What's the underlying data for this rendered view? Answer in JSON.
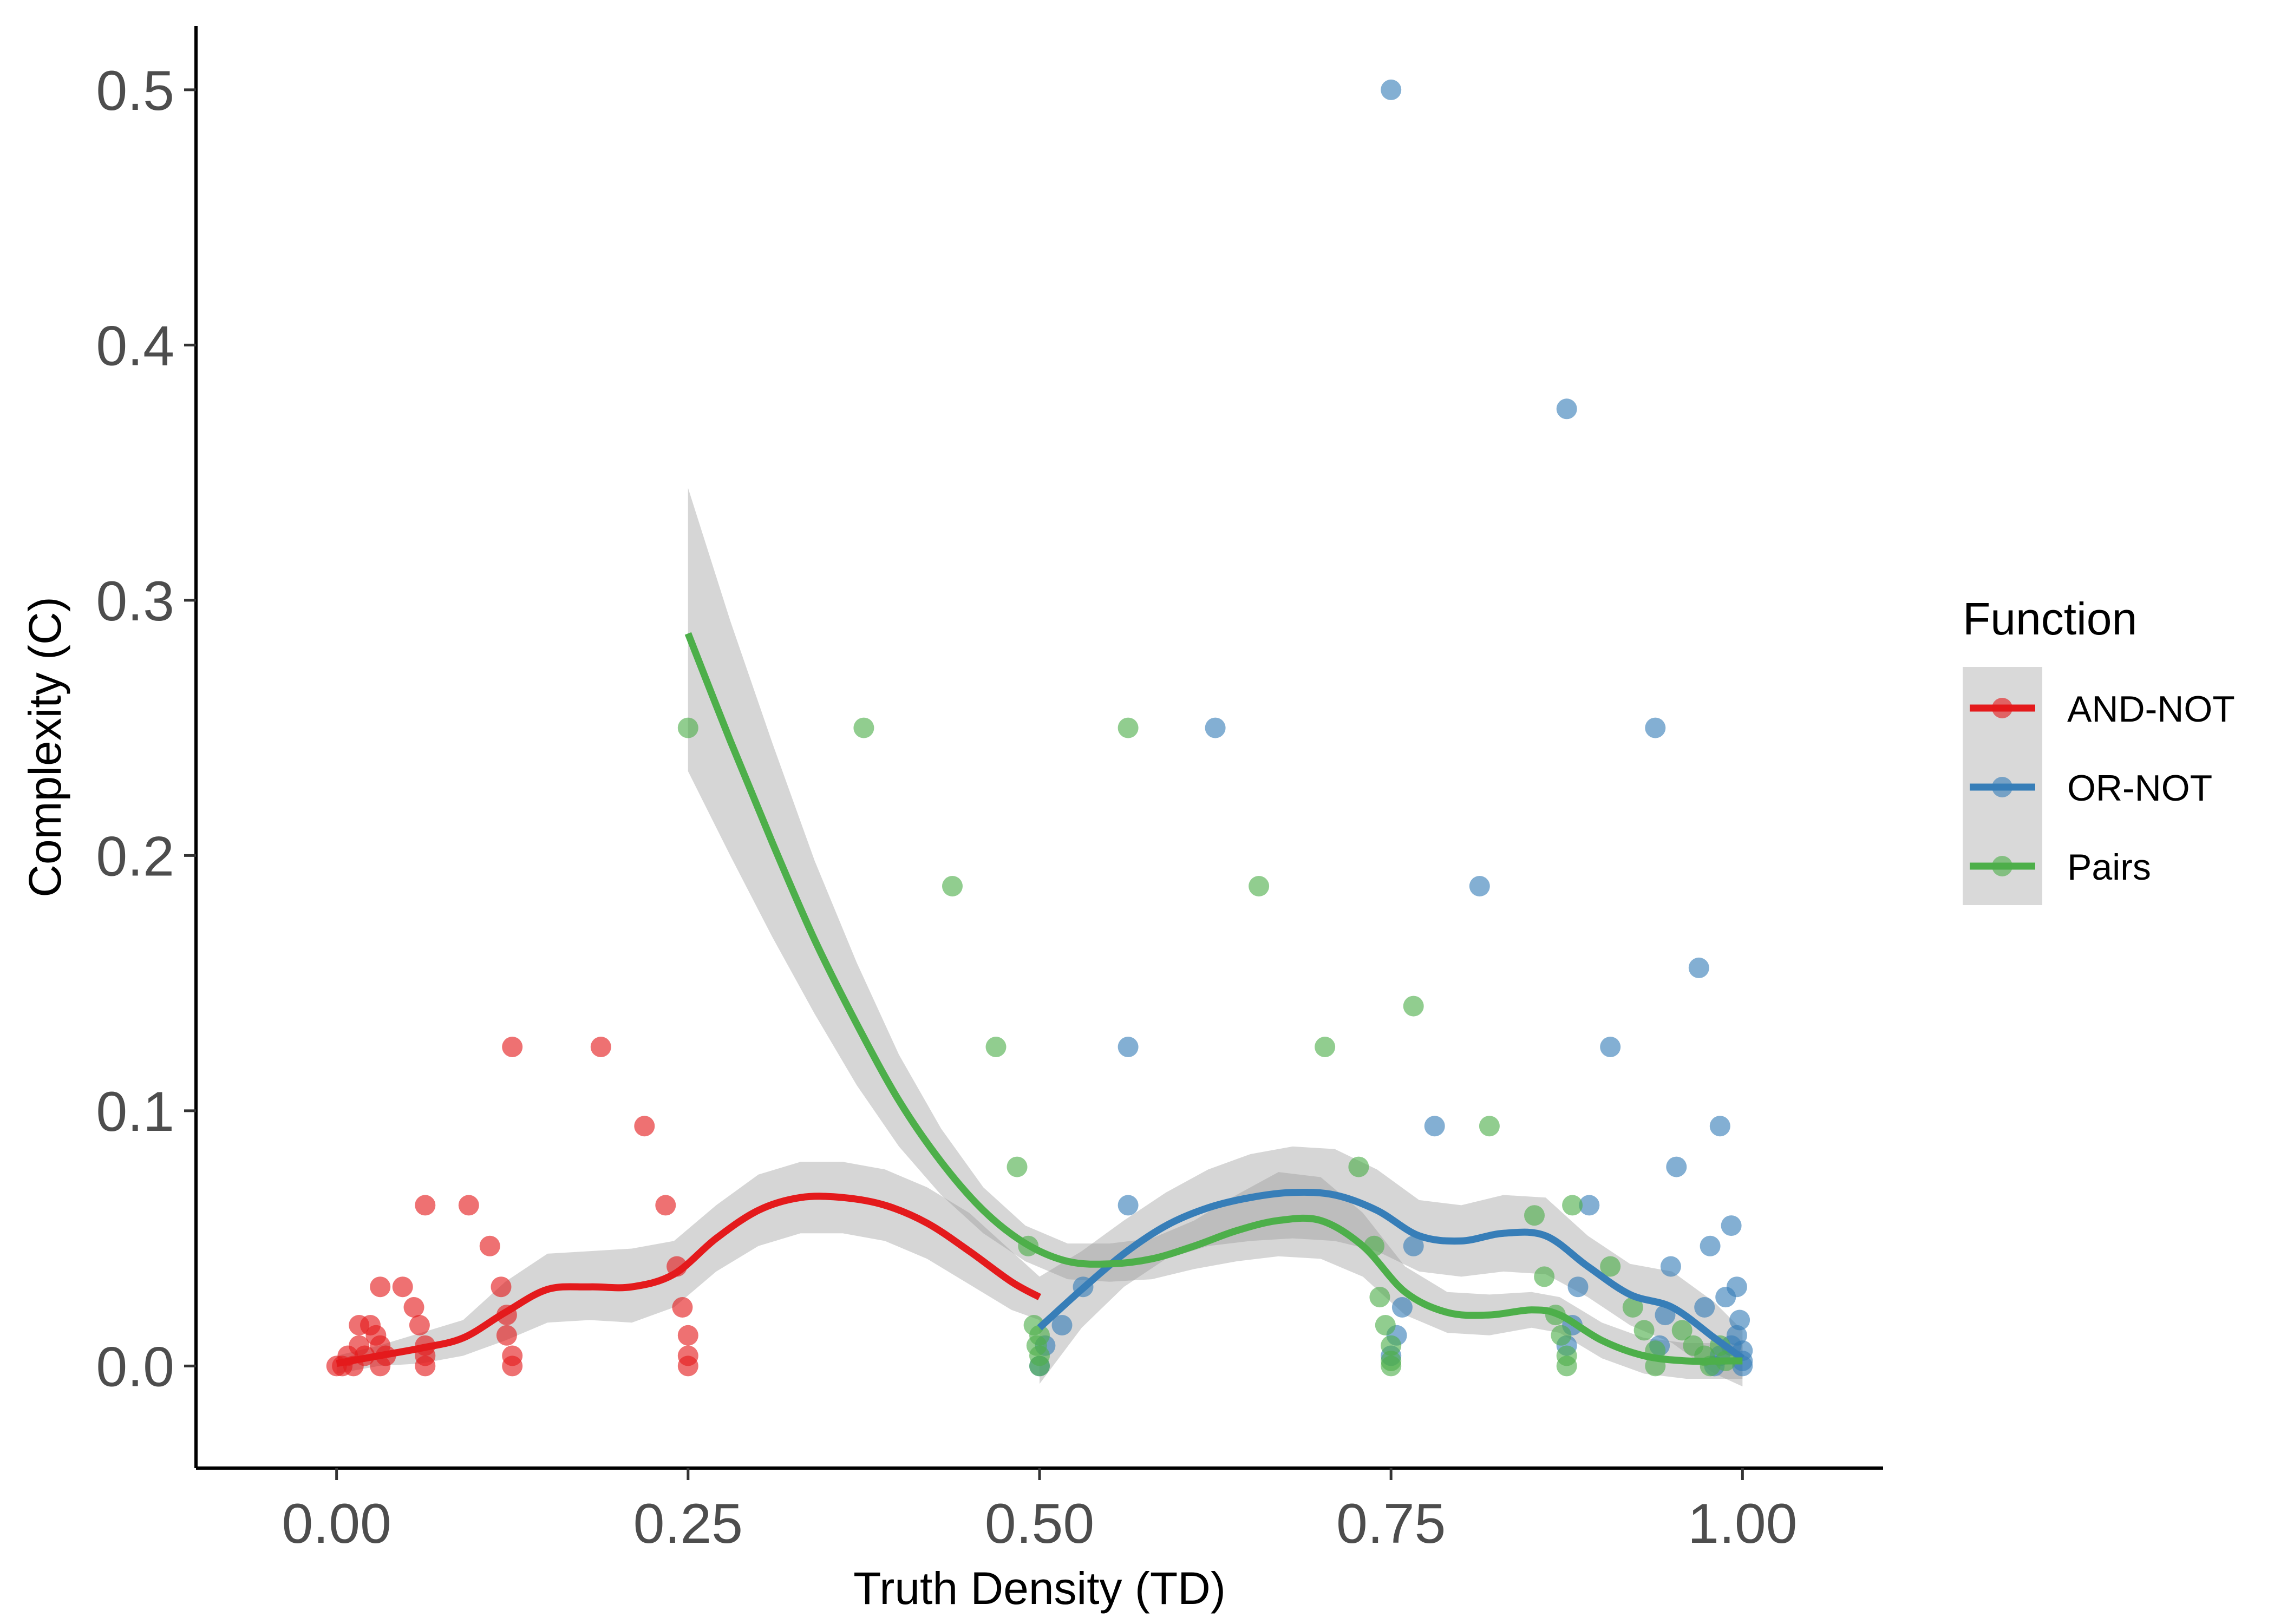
{
  "chart_data": {
    "type": "scatter",
    "xlabel": "Truth Density (TD)",
    "ylabel": "Complexity (C)",
    "xlim": [
      -0.1,
      1.1
    ],
    "ylim": [
      -0.04,
      0.525
    ],
    "x_ticks": [
      "0.00",
      "0.25",
      "0.50",
      "0.75",
      "1.00"
    ],
    "y_ticks": [
      "0.0",
      "0.1",
      "0.2",
      "0.3",
      "0.4",
      "0.5"
    ],
    "x_tick_values": [
      0,
      0.25,
      0.5,
      0.75,
      1.0
    ],
    "y_tick_values": [
      0,
      0.1,
      0.2,
      0.3,
      0.4,
      0.5
    ],
    "grid": false,
    "legend_title": "Function",
    "legend_position": "right",
    "series": [
      {
        "name": "AND-NOT",
        "color": "#e41a1c",
        "points": [
          [
            0,
            0
          ],
          [
            0.004,
            0
          ],
          [
            0.008,
            0.004
          ],
          [
            0.012,
            0
          ],
          [
            0.016,
            0.008
          ],
          [
            0.02,
            0.004
          ],
          [
            0.016,
            0.016
          ],
          [
            0.024,
            0.016
          ],
          [
            0.028,
            0.012
          ],
          [
            0.031,
            0.008
          ],
          [
            0.031,
            0.031
          ],
          [
            0.047,
            0.031
          ],
          [
            0.031,
            0
          ],
          [
            0.035,
            0.004
          ],
          [
            0.055,
            0.023
          ],
          [
            0.059,
            0.016
          ],
          [
            0.063,
            0.008
          ],
          [
            0.063,
            0.004
          ],
          [
            0.063,
            0
          ],
          [
            0.063,
            0.063
          ],
          [
            0.094,
            0.063
          ],
          [
            0.109,
            0.047
          ],
          [
            0.117,
            0.031
          ],
          [
            0.121,
            0.02
          ],
          [
            0.121,
            0.012
          ],
          [
            0.125,
            0.004
          ],
          [
            0.125,
            0
          ],
          [
            0.125,
            0.125
          ],
          [
            0.188,
            0.125
          ],
          [
            0.219,
            0.094
          ],
          [
            0.234,
            0.063
          ],
          [
            0.242,
            0.039
          ],
          [
            0.246,
            0.023
          ],
          [
            0.25,
            0.012
          ],
          [
            0.25,
            0.004
          ],
          [
            0.25,
            0
          ]
        ],
        "smooth": [
          [
            0,
            0.001
          ],
          [
            0.03,
            0.004
          ],
          [
            0.06,
            0.007
          ],
          [
            0.09,
            0.011
          ],
          [
            0.12,
            0.021
          ],
          [
            0.15,
            0.03
          ],
          [
            0.18,
            0.031
          ],
          [
            0.21,
            0.031
          ],
          [
            0.24,
            0.036
          ],
          [
            0.27,
            0.05
          ],
          [
            0.3,
            0.061
          ],
          [
            0.33,
            0.066
          ],
          [
            0.36,
            0.066
          ],
          [
            0.39,
            0.063
          ],
          [
            0.42,
            0.056
          ],
          [
            0.45,
            0.045
          ],
          [
            0.48,
            0.033
          ],
          [
            0.5,
            0.027
          ]
        ],
        "band_upper": [
          [
            0,
            0.004
          ],
          [
            0.03,
            0.008
          ],
          [
            0.06,
            0.013
          ],
          [
            0.09,
            0.018
          ],
          [
            0.12,
            0.033
          ],
          [
            0.15,
            0.044
          ],
          [
            0.18,
            0.045
          ],
          [
            0.21,
            0.046
          ],
          [
            0.24,
            0.049
          ],
          [
            0.27,
            0.063
          ],
          [
            0.3,
            0.075
          ],
          [
            0.33,
            0.08
          ],
          [
            0.36,
            0.08
          ],
          [
            0.39,
            0.077
          ],
          [
            0.42,
            0.07
          ],
          [
            0.45,
            0.06
          ],
          [
            0.48,
            0.045
          ],
          [
            0.5,
            0.035
          ]
        ],
        "band_lower": [
          [
            0,
            -0.003
          ],
          [
            0.03,
            0
          ],
          [
            0.06,
            0.001
          ],
          [
            0.09,
            0.004
          ],
          [
            0.12,
            0.01
          ],
          [
            0.15,
            0.017
          ],
          [
            0.18,
            0.018
          ],
          [
            0.21,
            0.017
          ],
          [
            0.24,
            0.023
          ],
          [
            0.27,
            0.037
          ],
          [
            0.3,
            0.047
          ],
          [
            0.33,
            0.052
          ],
          [
            0.36,
            0.052
          ],
          [
            0.39,
            0.049
          ],
          [
            0.42,
            0.042
          ],
          [
            0.45,
            0.032
          ],
          [
            0.48,
            0.022
          ],
          [
            0.5,
            0.018
          ]
        ]
      },
      {
        "name": "OR-NOT",
        "color": "#377eb8",
        "points": [
          [
            0.5,
            0
          ],
          [
            0.504,
            0.008
          ],
          [
            0.516,
            0.016
          ],
          [
            0.531,
            0.031
          ],
          [
            0.563,
            0.063
          ],
          [
            0.563,
            0.125
          ],
          [
            0.625,
            0.25
          ],
          [
            0.75,
            0.5
          ],
          [
            0.75,
            0.004
          ],
          [
            0.754,
            0.012
          ],
          [
            0.758,
            0.023
          ],
          [
            0.766,
            0.047
          ],
          [
            0.781,
            0.094
          ],
          [
            0.813,
            0.188
          ],
          [
            0.875,
            0.375
          ],
          [
            0.875,
            0.008
          ],
          [
            0.879,
            0.016
          ],
          [
            0.883,
            0.031
          ],
          [
            0.891,
            0.063
          ],
          [
            0.906,
            0.125
          ],
          [
            0.938,
            0.25
          ],
          [
            0.941,
            0.008
          ],
          [
            0.945,
            0.02
          ],
          [
            0.949,
            0.039
          ],
          [
            0.953,
            0.078
          ],
          [
            0.969,
            0.156
          ],
          [
            0.973,
            0.023
          ],
          [
            0.977,
            0.047
          ],
          [
            0.984,
            0.094
          ],
          [
            0.988,
            0.027
          ],
          [
            0.992,
            0.055
          ],
          [
            0.996,
            0.031
          ],
          [
            0.996,
            0.012
          ],
          [
            0.998,
            0.018
          ],
          [
            1.0,
            0.006
          ],
          [
            1.0,
            0.002
          ],
          [
            1.0,
            0
          ],
          [
            0.992,
            0.008
          ],
          [
            0.984,
            0.004
          ],
          [
            0.98,
            0
          ]
        ],
        "smooth": [
          [
            0.5,
            0.015
          ],
          [
            0.53,
            0.03
          ],
          [
            0.56,
            0.044
          ],
          [
            0.59,
            0.055
          ],
          [
            0.62,
            0.062
          ],
          [
            0.65,
            0.066
          ],
          [
            0.68,
            0.068
          ],
          [
            0.71,
            0.067
          ],
          [
            0.74,
            0.061
          ],
          [
            0.77,
            0.051
          ],
          [
            0.8,
            0.049
          ],
          [
            0.83,
            0.052
          ],
          [
            0.86,
            0.051
          ],
          [
            0.89,
            0.039
          ],
          [
            0.92,
            0.028
          ],
          [
            0.95,
            0.023
          ],
          [
            0.98,
            0.011
          ],
          [
            1.0,
            0.003
          ]
        ],
        "band_upper": [
          [
            0.5,
            0.035
          ],
          [
            0.53,
            0.045
          ],
          [
            0.56,
            0.057
          ],
          [
            0.59,
            0.068
          ],
          [
            0.62,
            0.077
          ],
          [
            0.65,
            0.083
          ],
          [
            0.68,
            0.086
          ],
          [
            0.71,
            0.085
          ],
          [
            0.74,
            0.077
          ],
          [
            0.77,
            0.065
          ],
          [
            0.8,
            0.063
          ],
          [
            0.83,
            0.067
          ],
          [
            0.86,
            0.066
          ],
          [
            0.89,
            0.051
          ],
          [
            0.92,
            0.04
          ],
          [
            0.95,
            0.037
          ],
          [
            0.98,
            0.025
          ],
          [
            1.0,
            0.014
          ]
        ],
        "band_lower": [
          [
            0.5,
            -0.007
          ],
          [
            0.53,
            0.015
          ],
          [
            0.56,
            0.031
          ],
          [
            0.59,
            0.042
          ],
          [
            0.62,
            0.047
          ],
          [
            0.65,
            0.049
          ],
          [
            0.68,
            0.05
          ],
          [
            0.71,
            0.049
          ],
          [
            0.74,
            0.045
          ],
          [
            0.77,
            0.037
          ],
          [
            0.8,
            0.035
          ],
          [
            0.83,
            0.037
          ],
          [
            0.86,
            0.036
          ],
          [
            0.89,
            0.027
          ],
          [
            0.92,
            0.016
          ],
          [
            0.95,
            0.009
          ],
          [
            0.98,
            -0.003
          ],
          [
            1.0,
            -0.008
          ]
        ]
      },
      {
        "name": "Pairs",
        "color": "#4daf4a",
        "points": [
          [
            0.25,
            0.25
          ],
          [
            0.375,
            0.25
          ],
          [
            0.438,
            0.188
          ],
          [
            0.469,
            0.125
          ],
          [
            0.484,
            0.078
          ],
          [
            0.492,
            0.047
          ],
          [
            0.496,
            0.016
          ],
          [
            0.5,
            0.004
          ],
          [
            0.5,
            0
          ],
          [
            0.498,
            0.008
          ],
          [
            0.5,
            0.012
          ],
          [
            0.563,
            0.25
          ],
          [
            0.656,
            0.188
          ],
          [
            0.703,
            0.125
          ],
          [
            0.727,
            0.078
          ],
          [
            0.738,
            0.047
          ],
          [
            0.742,
            0.027
          ],
          [
            0.746,
            0.016
          ],
          [
            0.75,
            0.008
          ],
          [
            0.75,
            0.002
          ],
          [
            0.75,
            0
          ],
          [
            0.766,
            0.141
          ],
          [
            0.82,
            0.094
          ],
          [
            0.852,
            0.059
          ],
          [
            0.859,
            0.035
          ],
          [
            0.867,
            0.02
          ],
          [
            0.871,
            0.012
          ],
          [
            0.875,
            0.004
          ],
          [
            0.875,
            0
          ],
          [
            0.879,
            0.063
          ],
          [
            0.906,
            0.039
          ],
          [
            0.922,
            0.023
          ],
          [
            0.93,
            0.014
          ],
          [
            0.938,
            0.006
          ],
          [
            0.938,
            0
          ],
          [
            0.957,
            0.014
          ],
          [
            0.965,
            0.008
          ],
          [
            0.973,
            0.004
          ],
          [
            0.977,
            0
          ],
          [
            0.984,
            0.008
          ],
          [
            0.988,
            0.002
          ]
        ],
        "smooth": [
          [
            0.25,
            0.287
          ],
          [
            0.28,
            0.245
          ],
          [
            0.31,
            0.205
          ],
          [
            0.34,
            0.167
          ],
          [
            0.37,
            0.134
          ],
          [
            0.4,
            0.104
          ],
          [
            0.43,
            0.08
          ],
          [
            0.46,
            0.061
          ],
          [
            0.49,
            0.048
          ],
          [
            0.52,
            0.041
          ],
          [
            0.55,
            0.04
          ],
          [
            0.58,
            0.042
          ],
          [
            0.61,
            0.047
          ],
          [
            0.64,
            0.053
          ],
          [
            0.67,
            0.057
          ],
          [
            0.7,
            0.057
          ],
          [
            0.73,
            0.047
          ],
          [
            0.76,
            0.029
          ],
          [
            0.79,
            0.021
          ],
          [
            0.82,
            0.02
          ],
          [
            0.85,
            0.022
          ],
          [
            0.87,
            0.02
          ],
          [
            0.9,
            0.01
          ],
          [
            0.93,
            0.004
          ],
          [
            0.96,
            0.002
          ],
          [
            0.99,
            0.002
          ],
          [
            1.0,
            0.002
          ]
        ],
        "band_upper": [
          [
            0.25,
            0.344
          ],
          [
            0.28,
            0.292
          ],
          [
            0.31,
            0.244
          ],
          [
            0.34,
            0.198
          ],
          [
            0.37,
            0.158
          ],
          [
            0.4,
            0.122
          ],
          [
            0.43,
            0.093
          ],
          [
            0.46,
            0.07
          ],
          [
            0.49,
            0.055
          ],
          [
            0.52,
            0.048
          ],
          [
            0.55,
            0.048
          ],
          [
            0.58,
            0.05
          ],
          [
            0.61,
            0.057
          ],
          [
            0.64,
            0.067
          ],
          [
            0.67,
            0.076
          ],
          [
            0.7,
            0.074
          ],
          [
            0.73,
            0.06
          ],
          [
            0.76,
            0.039
          ],
          [
            0.79,
            0.029
          ],
          [
            0.82,
            0.028
          ],
          [
            0.85,
            0.029
          ],
          [
            0.87,
            0.027
          ],
          [
            0.9,
            0.017
          ],
          [
            0.93,
            0.011
          ],
          [
            0.96,
            0.009
          ],
          [
            0.99,
            0.009
          ],
          [
            1.0,
            0.009
          ]
        ],
        "band_lower": [
          [
            0.25,
            0.233
          ],
          [
            0.28,
            0.2
          ],
          [
            0.31,
            0.168
          ],
          [
            0.34,
            0.138
          ],
          [
            0.37,
            0.11
          ],
          [
            0.4,
            0.086
          ],
          [
            0.43,
            0.067
          ],
          [
            0.46,
            0.052
          ],
          [
            0.49,
            0.041
          ],
          [
            0.52,
            0.034
          ],
          [
            0.55,
            0.033
          ],
          [
            0.58,
            0.034
          ],
          [
            0.61,
            0.038
          ],
          [
            0.64,
            0.041
          ],
          [
            0.67,
            0.043
          ],
          [
            0.7,
            0.042
          ],
          [
            0.73,
            0.035
          ],
          [
            0.76,
            0.02
          ],
          [
            0.79,
            0.013
          ],
          [
            0.82,
            0.012
          ],
          [
            0.85,
            0.015
          ],
          [
            0.87,
            0.013
          ],
          [
            0.9,
            0.003
          ],
          [
            0.93,
            -0.003
          ],
          [
            0.96,
            -0.005
          ],
          [
            0.99,
            -0.005
          ],
          [
            1.0,
            -0.005
          ]
        ]
      }
    ]
  }
}
